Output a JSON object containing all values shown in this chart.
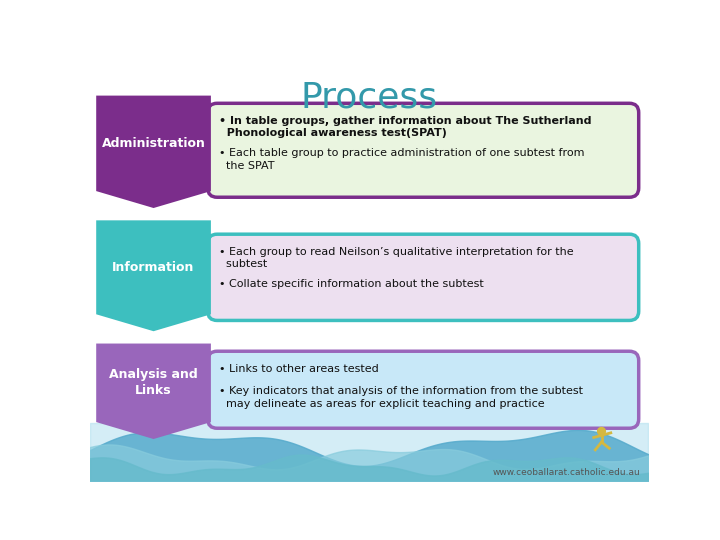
{
  "title": "Process",
  "title_color": "#3399AA",
  "title_fontsize": 26,
  "background_color": "#FFFFFF",
  "rows": [
    {
      "label": "Administration",
      "label_color": "#FFFFFF",
      "arrow_color": "#7B2D8B",
      "box_color": "#EAF5E0",
      "box_border_color": "#7B2D8B",
      "bullets": [
        "In table groups, gather information about The Sutherland\n  Phonological awareness test(SPAT)",
        "Each table group to practice administration of one subtest from\n  the SPAT"
      ],
      "bullet_bold": [
        true,
        false
      ]
    },
    {
      "label": "Information",
      "label_color": "#FFFFFF",
      "arrow_color": "#3DBFBF",
      "box_color": "#EDE0F0",
      "box_border_color": "#3DBFBF",
      "bullets": [
        "Each group to read Neilson’s qualitative interpretation for the\n  subtest",
        "Collate specific information about the subtest"
      ],
      "bullet_bold": [
        false,
        false
      ]
    },
    {
      "label": "Analysis and\nLinks",
      "label_color": "#FFFFFF",
      "arrow_color": "#9966BB",
      "box_color": "#C8E8F8",
      "box_border_color": "#9966BB",
      "bullets": [
        "Links to other areas tested",
        "Key indicators that analysis of the information from the subtest\n  may delineate as areas for explicit teaching and practice"
      ],
      "bullet_bold": [
        false,
        false
      ]
    }
  ],
  "footer_text": "www.ceoballarat.catholic.edu.au",
  "wave_colors": [
    "#4DBBCC",
    "#7799CC",
    "#5599BB"
  ]
}
